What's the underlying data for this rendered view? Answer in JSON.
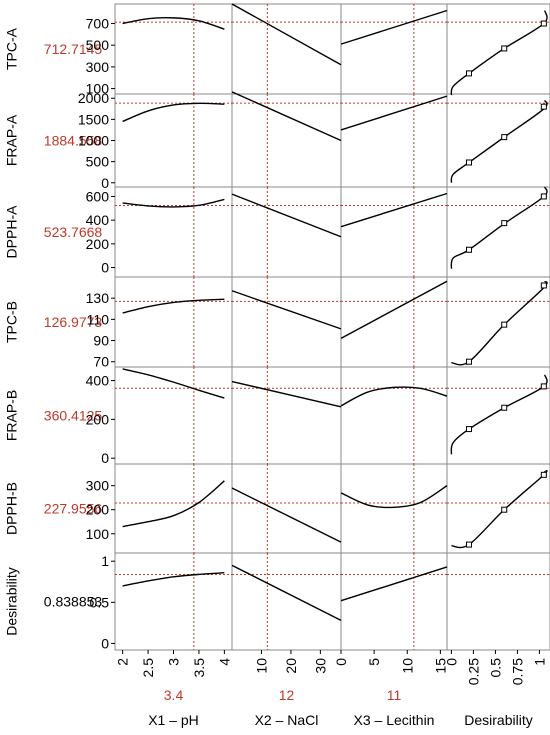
{
  "chart_data": {
    "type": "line",
    "title": "",
    "colors": {
      "curve": "#000000",
      "ref": "#c0392b",
      "value": "#c0392b",
      "desirability_value": "#000000",
      "frame": "#8a8a8a"
    },
    "columns": [
      {
        "key": "pH",
        "label": "X1 – pH",
        "current": "3.4",
        "current_value": 3.4,
        "xlim": [
          1.85,
          4.15
        ],
        "ticks": [
          "2",
          "2.5",
          "3",
          "3.5",
          "4"
        ],
        "tick_values": [
          2,
          2.5,
          3,
          3.5,
          4
        ]
      },
      {
        "key": "NaCl",
        "label": "X2 – NaCl",
        "current": "12",
        "current_value": 12,
        "xlim": [
          0,
          37
        ],
        "ticks": [
          "10",
          "20",
          "30"
        ],
        "tick_values": [
          10,
          20,
          30
        ]
      },
      {
        "key": "Lecithin",
        "label": "X3 – Lecithin",
        "current": "11",
        "current_value": 11,
        "xlim": [
          0,
          16
        ],
        "ticks": [
          "0",
          "5",
          "10",
          "15"
        ],
        "tick_values": [
          0,
          5,
          10,
          15
        ]
      },
      {
        "key": "Desirability",
        "label": "Desirability",
        "current": "",
        "current_value": null,
        "xlim": [
          -0.05,
          1.12
        ],
        "ticks": [
          "0",
          "0.25",
          "0.5",
          "0.75",
          "1"
        ],
        "tick_values": [
          0,
          0.25,
          0.5,
          0.75,
          1
        ]
      }
    ],
    "rows": [
      {
        "name": "TPC-A",
        "value": "712.7145",
        "ylim": [
          50,
          880
        ],
        "ticks": [
          "100",
          "300",
          "500",
          "700"
        ],
        "tick_values": [
          100,
          300,
          500,
          700
        ],
        "series": [
          {
            "x": [
              2,
              2.5,
              3,
              3.5,
              4
            ],
            "y": [
              700,
              745,
              752,
              725,
              648
            ]
          },
          {
            "x": [
              0,
              37
            ],
            "y": [
              880,
              320
            ]
          },
          {
            "x": [
              0,
              16
            ],
            "y": [
              510,
              820
            ]
          },
          {
            "x": [
              0,
              0.02,
              0.2,
              0.6,
              1.05,
              1.06
            ],
            "y": [
              40,
              120,
              240,
              470,
              700,
              820
            ]
          }
        ],
        "markers": {
          "x": [
            0.2,
            0.6,
            1.05
          ],
          "y": [
            240,
            470,
            700
          ]
        }
      },
      {
        "name": "FRAP-A",
        "value": "1884.558",
        "ylim": [
          -100,
          2100
        ],
        "ticks": [
          "0",
          "500",
          "1000",
          "1500",
          "2000"
        ],
        "tick_values": [
          0,
          500,
          1000,
          1500,
          2000
        ],
        "series": [
          {
            "x": [
              2,
              2.5,
              3,
              3.5,
              4
            ],
            "y": [
              1450,
              1700,
              1840,
              1880,
              1860
            ]
          },
          {
            "x": [
              0,
              37
            ],
            "y": [
              2150,
              1000
            ]
          },
          {
            "x": [
              0,
              16
            ],
            "y": [
              1250,
              2050
            ]
          },
          {
            "x": [
              0,
              0.02,
              0.2,
              0.6,
              1.05,
              1.06
            ],
            "y": [
              0,
              200,
              480,
              1080,
              1750,
              1950
            ]
          }
        ],
        "markers": {
          "x": [
            0.2,
            0.6,
            1.05
          ],
          "y": [
            480,
            1080,
            1800
          ]
        }
      },
      {
        "name": "DPPH-A",
        "value": "523.7668",
        "ylim": [
          -80,
          680
        ],
        "ticks": [
          "0",
          "200",
          "400",
          "600"
        ],
        "tick_values": [
          0,
          200,
          400,
          600
        ],
        "series": [
          {
            "x": [
              2,
              2.5,
              3,
              3.5,
              4
            ],
            "y": [
              545,
              520,
              512,
              525,
              575
            ]
          },
          {
            "x": [
              0,
              37
            ],
            "y": [
              620,
              260
            ]
          },
          {
            "x": [
              0,
              16
            ],
            "y": [
              345,
              625
            ]
          },
          {
            "x": [
              0,
              0.02,
              0.2,
              0.6,
              1.05,
              1.06
            ],
            "y": [
              -10,
              80,
              150,
              370,
              600,
              680
            ]
          }
        ],
        "markers": {
          "x": [
            0.2,
            0.6,
            1.05
          ],
          "y": [
            150,
            375,
            600
          ]
        }
      },
      {
        "name": "TPC-B",
        "value": "126.9773",
        "ylim": [
          65,
          150
        ],
        "ticks": [
          "70",
          "90",
          "110",
          "130"
        ],
        "tick_values": [
          70,
          90,
          110,
          130
        ],
        "series": [
          {
            "x": [
              2,
              2.5,
              3,
              3.5,
              4
            ],
            "y": [
              116,
              122,
              126,
              128,
              129
            ]
          },
          {
            "x": [
              0,
              37
            ],
            "y": [
              137,
              101
            ]
          },
          {
            "x": [
              0,
              16
            ],
            "y": [
              92,
              146
            ]
          },
          {
            "x": [
              0,
              0.2,
              0.6,
              1.05,
              1.06
            ],
            "y": [
              69,
              70,
              105,
              140,
              146
            ]
          }
        ],
        "markers": {
          "x": [
            0.2,
            0.6,
            1.05
          ],
          "y": [
            70,
            105,
            142
          ]
        }
      },
      {
        "name": "FRAP-B",
        "value": "360.4125",
        "ylim": [
          -30,
          470
        ],
        "ticks": [
          "0",
          "200",
          "400"
        ],
        "tick_values": [
          0,
          200,
          400
        ],
        "series": [
          {
            "x": [
              2,
              2.5,
              3,
              3.5,
              4
            ],
            "y": [
              460,
              430,
              392,
              350,
              310
            ]
          },
          {
            "x": [
              0,
              37
            ],
            "y": [
              395,
              265
            ]
          },
          {
            "x": [
              0,
              4,
              8,
              12,
              16
            ],
            "y": [
              270,
              340,
              365,
              360,
              320
            ]
          },
          {
            "x": [
              0,
              0.02,
              0.2,
              0.6,
              1.05,
              1.06
            ],
            "y": [
              20,
              80,
              150,
              260,
              370,
              430
            ]
          }
        ],
        "markers": {
          "x": [
            0.2,
            0.6,
            1.05
          ],
          "y": [
            150,
            260,
            370
          ]
        }
      },
      {
        "name": "DPPH-B",
        "value": "227.9556",
        "ylim": [
          20,
          390
        ],
        "ticks": [
          "100",
          "200",
          "300"
        ],
        "tick_values": [
          100,
          200,
          300
        ],
        "series": [
          {
            "x": [
              2,
              2.5,
              3,
              3.5,
              4
            ],
            "y": [
              130,
              150,
              175,
              230,
              320
            ]
          },
          {
            "x": [
              0,
              37
            ],
            "y": [
              290,
              65
            ]
          },
          {
            "x": [
              0,
              4,
              8,
              12,
              16
            ],
            "y": [
              270,
              220,
              210,
              230,
              300
            ]
          },
          {
            "x": [
              0,
              0.2,
              0.6,
              1.05,
              1.06
            ],
            "y": [
              50,
              55,
              200,
              345,
              360
            ]
          }
        ],
        "markers": {
          "x": [
            0.2,
            0.6,
            1.05
          ],
          "y": [
            55,
            200,
            345
          ]
        }
      },
      {
        "name": "Desirability",
        "value": "0.838853",
        "ylim": [
          -0.08,
          1.1
        ],
        "ticks": [
          "0",
          "0.5",
          "1"
        ],
        "tick_values": [
          0,
          0.5,
          1
        ],
        "series": [
          {
            "x": [
              2,
              2.5,
              3,
              3.5,
              4
            ],
            "y": [
              0.7,
              0.76,
              0.81,
              0.84,
              0.86
            ]
          },
          {
            "x": [
              0,
              37
            ],
            "y": [
              0.95,
              0.28
            ]
          },
          {
            "x": [
              0,
              16
            ],
            "y": [
              0.52,
              0.93
            ]
          },
          null
        ],
        "markers": null
      }
    ]
  }
}
